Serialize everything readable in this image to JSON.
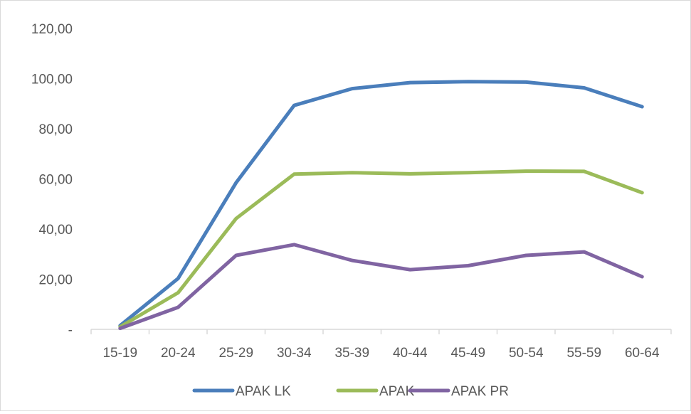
{
  "chart_data": {
    "type": "line",
    "title": "",
    "xlabel": "",
    "ylabel": "",
    "categories": [
      "15-19",
      "20-24",
      "25-29",
      "30-34",
      "35-39",
      "40-44",
      "45-49",
      "50-54",
      "55-59",
      "60-64"
    ],
    "y_ticks": [
      "-",
      "20,00",
      "40,00",
      "60,00",
      "80,00",
      "100,00",
      "120,00"
    ],
    "ylim": [
      0,
      120
    ],
    "grid": false,
    "legend_position": "bottom",
    "series": [
      {
        "name": "APAK LK",
        "color": "#4a7ebb",
        "values": [
          1.5,
          20.3,
          58.5,
          89.3,
          96.0,
          98.4,
          98.8,
          98.6,
          96.3,
          88.8
        ]
      },
      {
        "name": "APAK",
        "color": "#9bbb59",
        "values": [
          1.0,
          14.6,
          44.2,
          61.9,
          62.5,
          62.0,
          62.5,
          63.1,
          63.0,
          54.5
        ]
      },
      {
        "name": "APAK PR",
        "color": "#8064a2",
        "values": [
          0.4,
          8.8,
          29.5,
          33.8,
          27.5,
          23.8,
          25.4,
          29.5,
          30.9,
          21.0
        ]
      }
    ]
  }
}
